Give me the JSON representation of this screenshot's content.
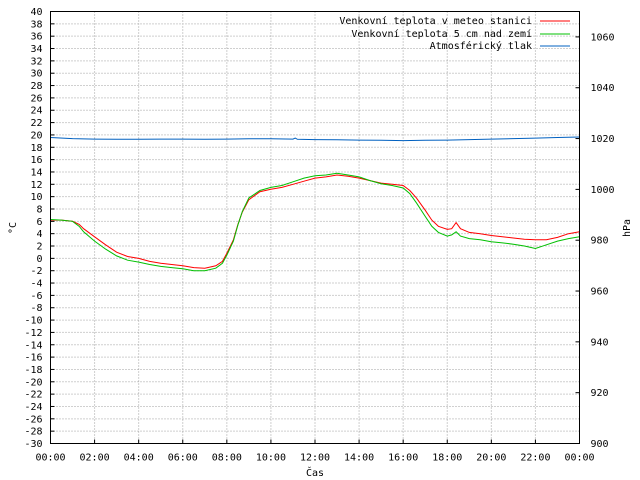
{
  "chart_data": {
    "type": "line",
    "xlabel": "Čas",
    "ylabel": "°C",
    "y2label": "hPa",
    "grid": true,
    "legend_position": "top-right",
    "x_ticks": [
      "00:00",
      "02:00",
      "04:00",
      "06:00",
      "08:00",
      "10:00",
      "12:00",
      "14:00",
      "16:00",
      "18:00",
      "20:00",
      "22:00",
      "00:00"
    ],
    "x_range_hours": [
      0,
      24
    ],
    "ylim": [
      -30,
      40
    ],
    "y_tick_step": 2,
    "y2lim": [
      900,
      1070
    ],
    "y2_ticks": [
      900,
      920,
      940,
      960,
      980,
      1000,
      1020,
      1040,
      1060
    ],
    "series": [
      {
        "name": "Venkovní teplota v meteo stanici",
        "color": "#ff0000",
        "axis": "left",
        "x": [
          0,
          0.5,
          1,
          1.3,
          1.5,
          2,
          2.5,
          3,
          3.5,
          4,
          4.5,
          5,
          5.5,
          6,
          6.5,
          7,
          7.5,
          7.8,
          8,
          8.3,
          8.5,
          8.7,
          9,
          9.5,
          10,
          10.5,
          11,
          11.5,
          12,
          12.5,
          13,
          13.5,
          14,
          14.5,
          15,
          15.5,
          16,
          16.3,
          16.6,
          17,
          17.3,
          17.6,
          18,
          18.2,
          18.4,
          18.6,
          19,
          19.5,
          20,
          20.5,
          21,
          21.5,
          22,
          22.5,
          23,
          23.5,
          24
        ],
        "values": [
          6.2,
          6.2,
          6,
          5.5,
          4.8,
          3.5,
          2.2,
          1,
          0.3,
          0,
          -0.5,
          -0.8,
          -1,
          -1.2,
          -1.5,
          -1.6,
          -1.2,
          -0.5,
          0.8,
          3,
          5.5,
          7.5,
          9.5,
          10.8,
          11.2,
          11.5,
          12,
          12.5,
          13,
          13.2,
          13.5,
          13.3,
          13,
          12.6,
          12.2,
          12,
          11.8,
          11,
          9.8,
          7.8,
          6.2,
          5.2,
          4.7,
          4.8,
          5.8,
          4.8,
          4.2,
          4,
          3.7,
          3.5,
          3.3,
          3.1,
          3,
          3,
          3.4,
          4,
          4.3
        ]
      },
      {
        "name": "Venkovní teplota 5 cm nad zemí",
        "color": "#00c000",
        "axis": "left",
        "x": [
          0,
          0.5,
          1,
          1.3,
          1.5,
          2,
          2.5,
          3,
          3.5,
          4,
          4.5,
          5,
          5.5,
          6,
          6.5,
          7,
          7.5,
          7.8,
          8,
          8.3,
          8.5,
          8.7,
          9,
          9.5,
          10,
          10.5,
          11,
          11.5,
          12,
          12.5,
          13,
          13.5,
          14,
          14.5,
          15,
          15.5,
          16,
          16.3,
          16.6,
          17,
          17.3,
          17.6,
          18,
          18.2,
          18.4,
          18.6,
          19,
          19.5,
          20,
          20.5,
          21,
          21.5,
          22,
          22.5,
          23,
          23.5,
          24
        ],
        "values": [
          6.3,
          6.2,
          6,
          5.2,
          4.3,
          2.8,
          1.5,
          0.4,
          -0.3,
          -0.6,
          -1,
          -1.3,
          -1.5,
          -1.7,
          -2,
          -2,
          -1.6,
          -0.8,
          0.5,
          2.8,
          5.4,
          7.6,
          9.8,
          11,
          11.5,
          11.8,
          12.4,
          13,
          13.4,
          13.5,
          13.8,
          13.5,
          13.2,
          12.6,
          12.1,
          11.8,
          11.4,
          10.5,
          9,
          6.8,
          5.2,
          4.2,
          3.6,
          3.8,
          4.3,
          3.6,
          3.2,
          3,
          2.7,
          2.5,
          2.3,
          2,
          1.6,
          2.2,
          2.8,
          3.2,
          3.5
        ]
      },
      {
        "name": "Atmosférický tlak",
        "color": "#0060c0",
        "axis": "right",
        "x": [
          0,
          1,
          2,
          3,
          4,
          5,
          6,
          7,
          8,
          9,
          10,
          11,
          11.1,
          11.2,
          12,
          13,
          14,
          15,
          16,
          17,
          18,
          19,
          20,
          21,
          22,
          23,
          24
        ],
        "values": [
          1020.4,
          1020,
          1019.8,
          1019.7,
          1019.7,
          1019.8,
          1019.8,
          1019.7,
          1019.8,
          1019.9,
          1019.9,
          1019.8,
          1020.2,
          1019.7,
          1019.6,
          1019.5,
          1019.4,
          1019.3,
          1019.2,
          1019.3,
          1019.4,
          1019.6,
          1019.8,
          1020,
          1020.2,
          1020.4,
          1020.6
        ]
      }
    ]
  }
}
